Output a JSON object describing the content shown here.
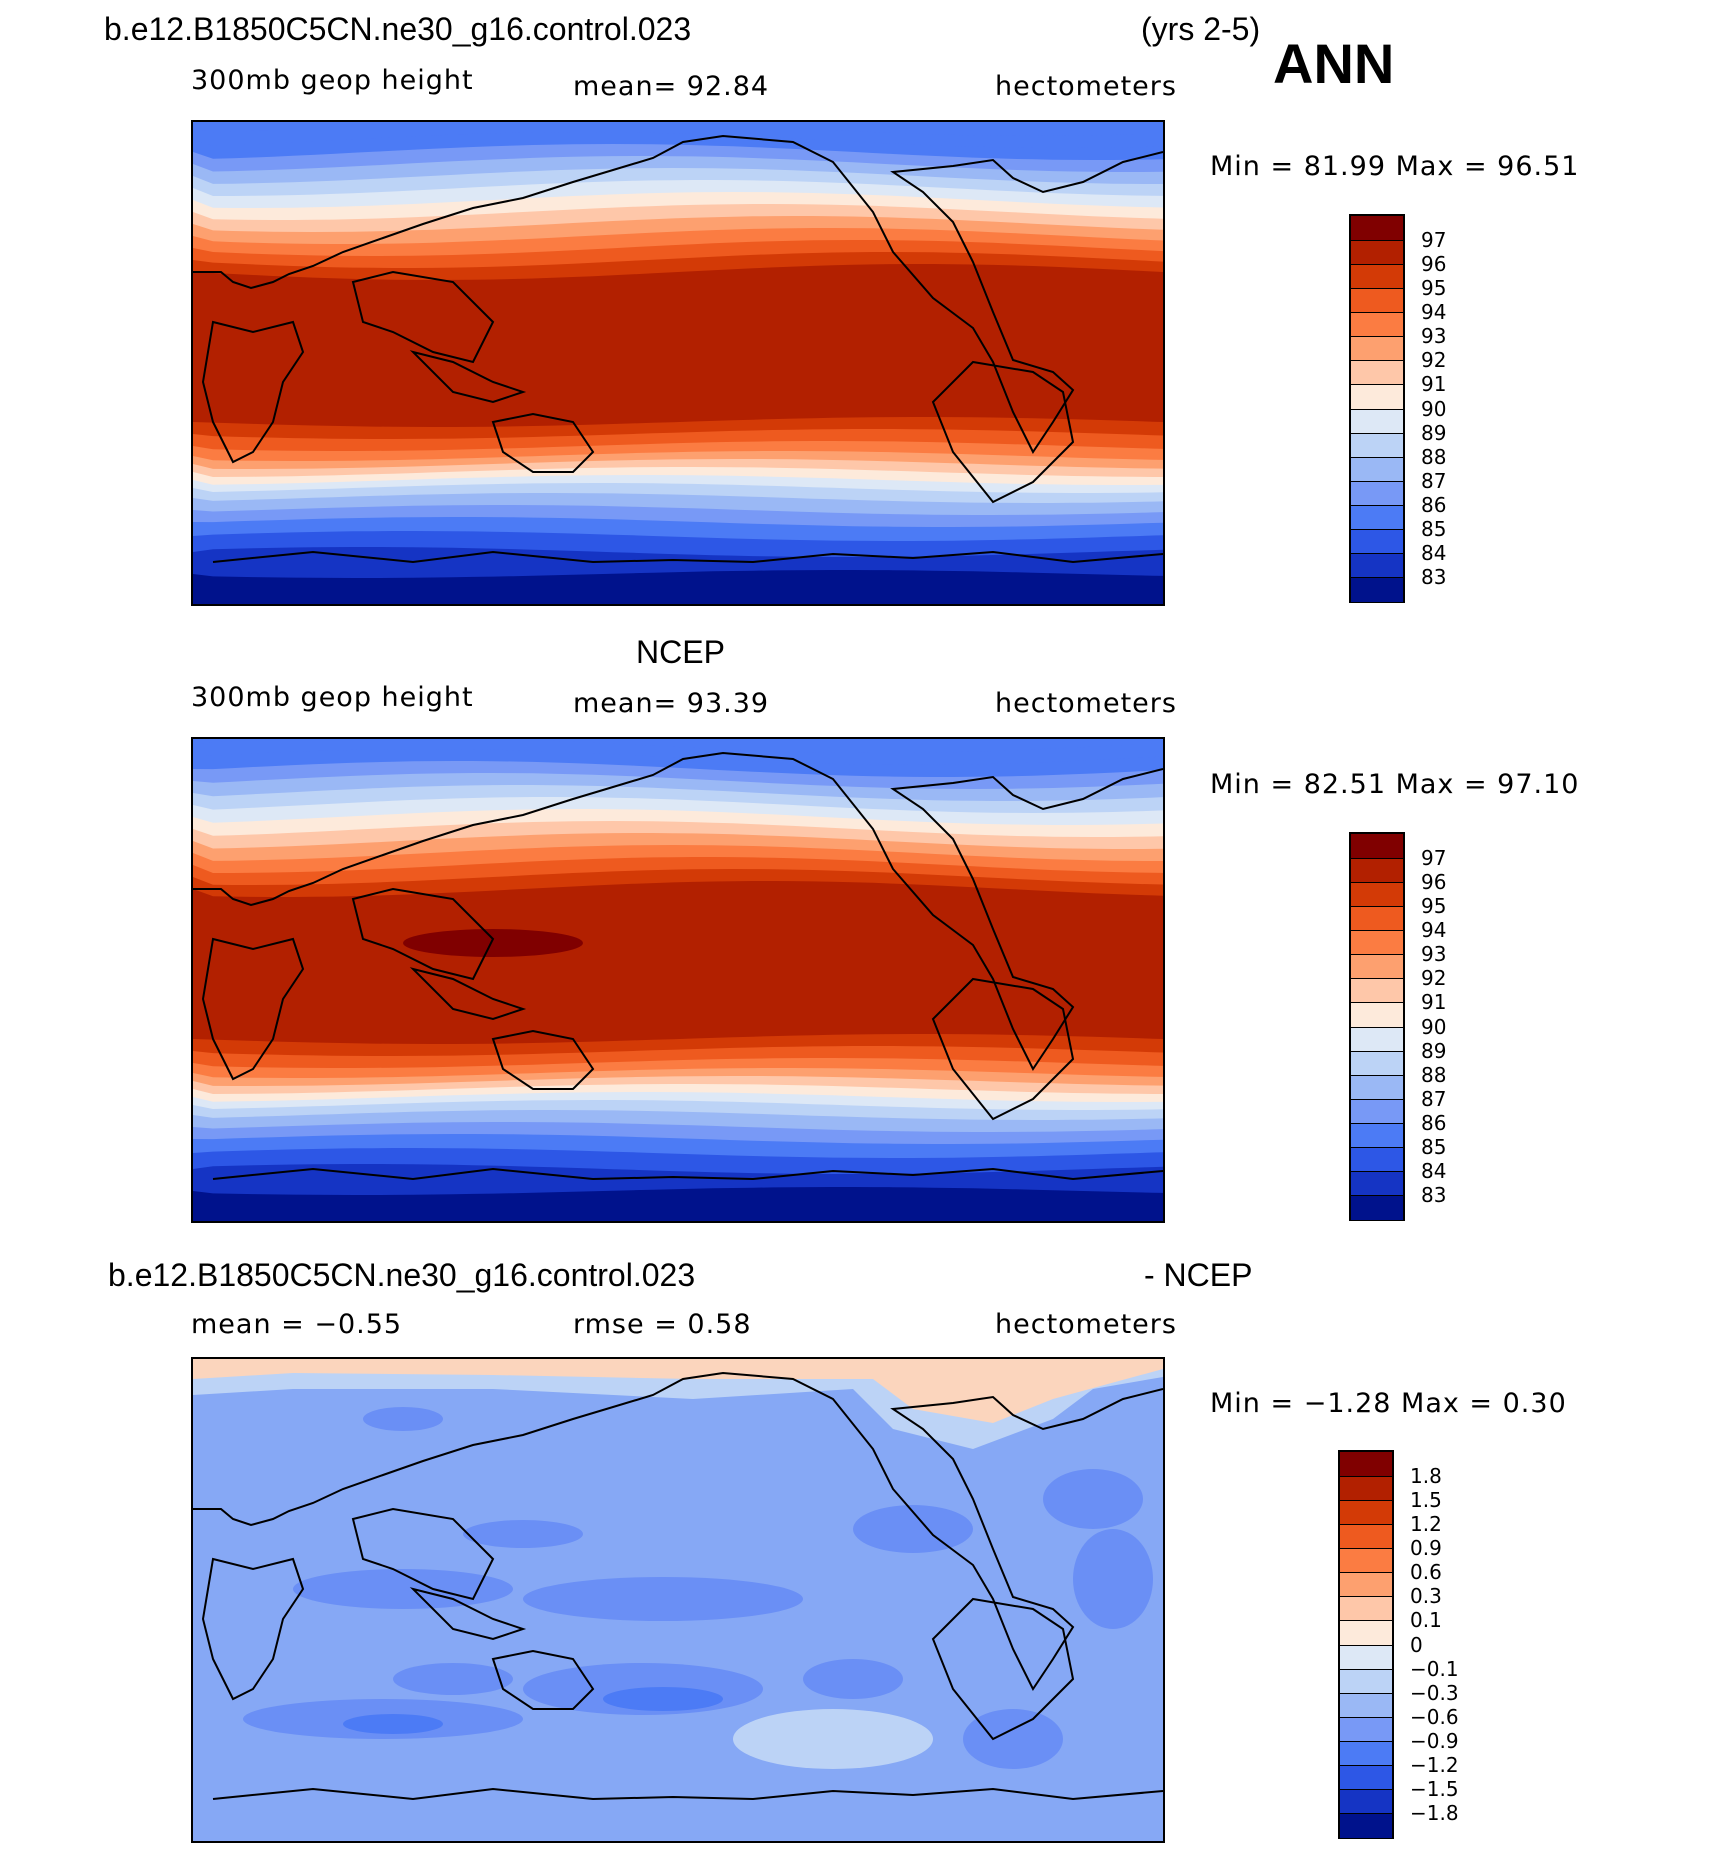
{
  "header": {
    "case_name": "b.e12.B1850C5CN.ne30_g16.control.023",
    "years": "(yrs 2-5)",
    "season": "ANN"
  },
  "panels": [
    {
      "title": "",
      "left": "300mb geop height",
      "center": "mean=  92.84",
      "right": "hectometers",
      "min_max": "Min =   81.99 Max =   96.51",
      "colorbar": {
        "levels": [
          "97",
          "96",
          "95",
          "94",
          "93",
          "92",
          "91",
          "90",
          "89",
          "88",
          "87",
          "86",
          "85",
          "84",
          "83"
        ],
        "colors": [
          "#800000",
          "#b22000",
          "#d33a06",
          "#ee5a1f",
          "#fb7c42",
          "#fda06f",
          "#fec7a9",
          "#fdeadb",
          "#dde8f6",
          "#bcd3f6",
          "#9ab8f5",
          "#7899f6",
          "#4c7bf5",
          "#2d57e6",
          "#1534c4",
          "#00128c"
        ]
      },
      "bands": {
        "sh_cap": "#00128c",
        "mid": [
          "#1534c4",
          "#2d57e6",
          "#4c7bf5",
          "#7899f6",
          "#9ab8f5",
          "#bcd3f6",
          "#dde8f6",
          "#fdeadb",
          "#fec7a9",
          "#fda06f",
          "#fb7c42",
          "#ee5a1f",
          "#d33a06"
        ],
        "tropic": "#b22000",
        "nh": [
          "#d33a06",
          "#ee5a1f",
          "#fb7c42",
          "#fda06f",
          "#fec7a9",
          "#fdeadb",
          "#dde8f6",
          "#bcd3f6",
          "#9ab8f5",
          "#7899f6",
          "#4c7bf5",
          "#4c7bf5",
          "#4c7bf5"
        ]
      }
    },
    {
      "title": "NCEP",
      "left": "300mb geop height",
      "center": "mean=  93.39",
      "right": "hectometers",
      "min_max": "Min =   82.51 Max =   97.10",
      "colorbar": {
        "levels": [
          "97",
          "96",
          "95",
          "94",
          "93",
          "92",
          "91",
          "90",
          "89",
          "88",
          "87",
          "86",
          "85",
          "84",
          "83"
        ],
        "colors": [
          "#800000",
          "#b22000",
          "#d33a06",
          "#ee5a1f",
          "#fb7c42",
          "#fda06f",
          "#fec7a9",
          "#fdeadb",
          "#dde8f6",
          "#bcd3f6",
          "#9ab8f5",
          "#7899f6",
          "#4c7bf5",
          "#2d57e6",
          "#1534c4",
          "#00128c"
        ]
      },
      "bands": {
        "sh_cap": "#00128c",
        "mid": [
          "#1534c4",
          "#2d57e6",
          "#4c7bf5",
          "#7899f6",
          "#9ab8f5",
          "#bcd3f6",
          "#dde8f6",
          "#fdeadb",
          "#fec7a9",
          "#fda06f",
          "#fb7c42",
          "#ee5a1f",
          "#d33a06"
        ],
        "tropic": "#b22000",
        "nh": [
          "#d33a06",
          "#ee5a1f",
          "#fb7c42",
          "#fda06f",
          "#fec7a9",
          "#fdeadb",
          "#dde8f6",
          "#bcd3f6",
          "#9ab8f5",
          "#7899f6",
          "#4c7bf5",
          "#4c7bf5",
          "#4c7bf5"
        ]
      }
    },
    {
      "title": "b.e12.B1850C5CN.ne30_g16.control.023",
      "title_suffix": "- NCEP",
      "left": "mean =   −0.55",
      "center": "rmse =    0.58",
      "right": "hectometers",
      "min_max": "Min =   −1.28 Max =    0.30",
      "colorbar": {
        "levels": [
          "1.8",
          "1.5",
          "1.2",
          "0.9",
          "0.6",
          "0.3",
          "0.1",
          "0",
          "−0.1",
          "−0.3",
          "−0.6",
          "−0.9",
          "−1.2",
          "−1.5",
          "−1.8"
        ],
        "colors": [
          "#800000",
          "#b22000",
          "#d33a06",
          "#ee5a1f",
          "#fb7c42",
          "#fda06f",
          "#fec7a9",
          "#fdeadb",
          "#dde8f6",
          "#bcd3f6",
          "#9ab8f5",
          "#7899f6",
          "#4c7bf5",
          "#2d57e6",
          "#1534c4",
          "#00128c"
        ]
      }
    }
  ],
  "map_colors": {
    "coast": "#000000",
    "diff_base": "#86a8f5",
    "diff_low": "#6a8ff5",
    "diff_lower": "#4c7bf5",
    "diff_pos": "#fbd5bd",
    "diff_light": "#bcd3f6",
    "trop_max": "#800000"
  }
}
